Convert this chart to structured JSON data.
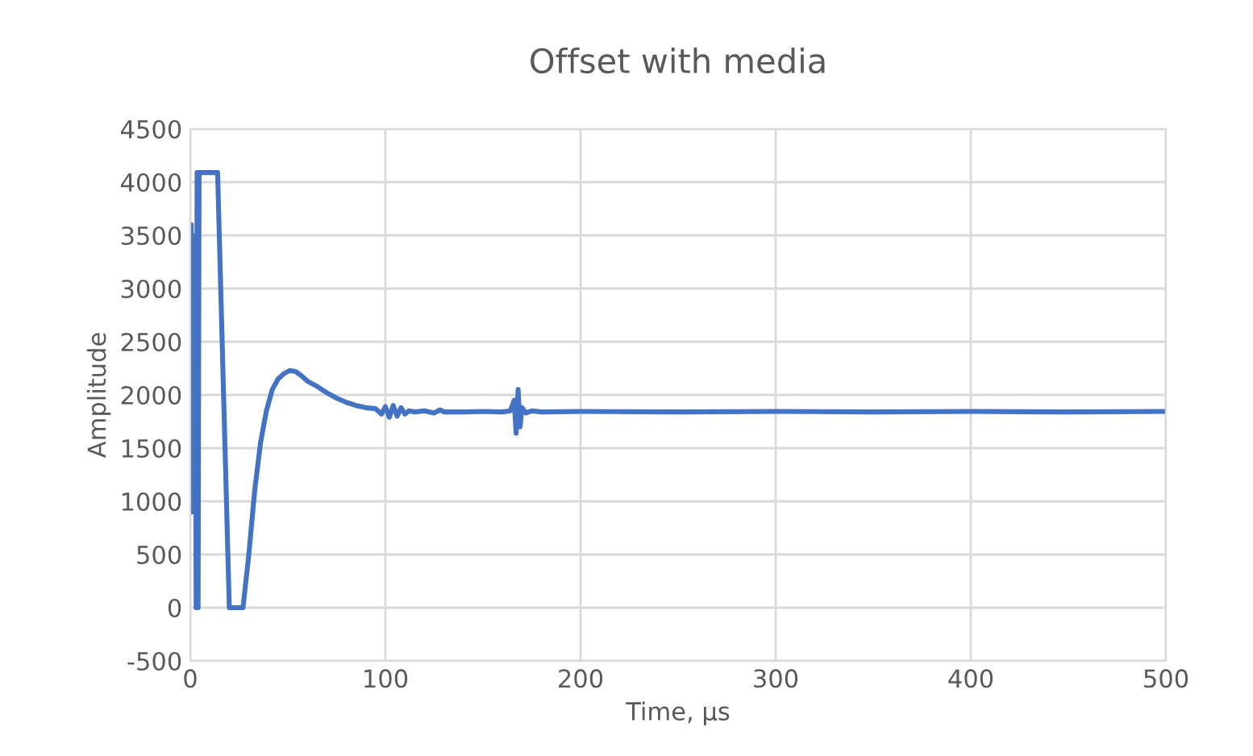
{
  "chart_data": {
    "type": "line",
    "title": "Offset with media",
    "xlabel": "Time, µs",
    "ylabel": "Amplitude",
    "series": [
      {
        "color": "#4472c4",
        "x": [
          0,
          0.5,
          1,
          1.5,
          2,
          2.5,
          3,
          3.5,
          4,
          4.5,
          5,
          14,
          20,
          27,
          30,
          33,
          36,
          39,
          42,
          45,
          48,
          51,
          54,
          57,
          60,
          65,
          70,
          75,
          80,
          85,
          90,
          95,
          98,
          100,
          102,
          104,
          106,
          108,
          110,
          112,
          115,
          120,
          125,
          128,
          130,
          140,
          150,
          160,
          164,
          166,
          167,
          168,
          169,
          170,
          172,
          175,
          180,
          200,
          250,
          300,
          350,
          400,
          450,
          500
        ],
        "values": [
          900,
          3600,
          1000,
          3500,
          900,
          3400,
          0,
          4090,
          0,
          4090,
          4090,
          4090,
          0,
          0,
          500,
          1100,
          1550,
          1850,
          2050,
          2150,
          2200,
          2230,
          2220,
          2180,
          2130,
          2080,
          2020,
          1970,
          1930,
          1900,
          1880,
          1870,
          1820,
          1890,
          1790,
          1900,
          1800,
          1880,
          1820,
          1850,
          1840,
          1850,
          1830,
          1860,
          1840,
          1840,
          1845,
          1840,
          1850,
          1950,
          1640,
          2050,
          1700,
          1880,
          1830,
          1850,
          1840,
          1845,
          1840,
          1845,
          1840,
          1845,
          1840,
          1845
        ]
      }
    ],
    "xlim": [
      0,
      500
    ],
    "xticks": [
      0,
      100,
      200,
      300,
      400,
      500
    ],
    "ylim": [
      -500,
      4500
    ],
    "yticks": [
      -500,
      0,
      500,
      1000,
      1500,
      2000,
      2500,
      3000,
      3500,
      4000,
      4500
    ],
    "grid": true,
    "legend": false
  }
}
